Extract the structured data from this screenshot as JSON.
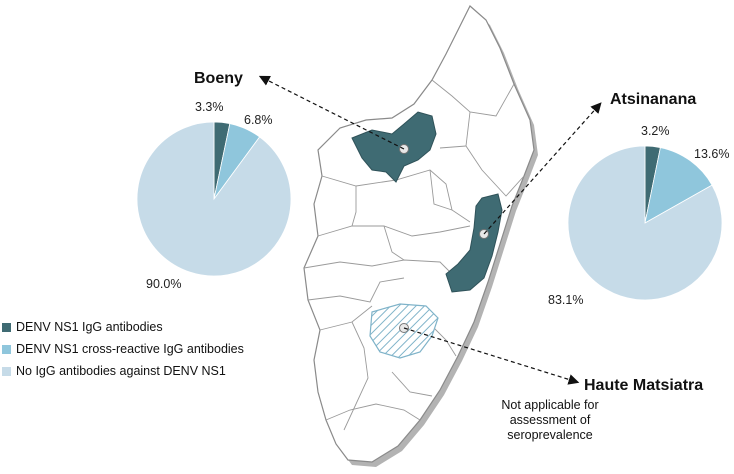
{
  "colors": {
    "igg": "#3f6b73",
    "cross_reactive": "#8fc6dc",
    "none": "#c6dbe8",
    "map_fill": "#ffffff",
    "map_border": "#8a8a8a",
    "map_shadow": "#b3b3b3",
    "hatch": "#7fb3c9"
  },
  "regions": {
    "boeny": {
      "name": "Boeny"
    },
    "atsinanana": {
      "name": "Atsinanana"
    },
    "haute_matsiatra": {
      "name": "Haute Matsiatra",
      "note_lines": [
        "Not applicable for",
        "assessment of",
        "seroprevalence"
      ]
    }
  },
  "legend": [
    {
      "label": "DENV NS1 IgG antibodies",
      "color": "#3f6b73"
    },
    {
      "label": "DENV NS1 cross-reactive IgG antibodies",
      "color": "#8fc6dc"
    },
    {
      "label": "No IgG antibodies against DENV NS1",
      "color": "#c6dbe8"
    }
  ],
  "chart_data": [
    {
      "type": "pie",
      "region": "Boeny",
      "slices": [
        {
          "label": "DENV NS1 IgG antibodies",
          "value": 3.3,
          "text": "3.3%"
        },
        {
          "label": "DENV NS1 cross-reactive IgG antibodies",
          "value": 6.8,
          "text": "6.8%"
        },
        {
          "label": "No IgG antibodies against DENV NS1",
          "value": 90.0,
          "text": "90.0%"
        }
      ]
    },
    {
      "type": "pie",
      "region": "Atsinanana",
      "slices": [
        {
          "label": "DENV NS1 IgG antibodies",
          "value": 3.2,
          "text": "3.2%"
        },
        {
          "label": "DENV NS1 cross-reactive IgG antibodies",
          "value": 13.6,
          "text": "13.6%"
        },
        {
          "label": "No IgG antibodies against DENV NS1",
          "value": 83.1,
          "text": "83.1%"
        }
      ]
    }
  ]
}
